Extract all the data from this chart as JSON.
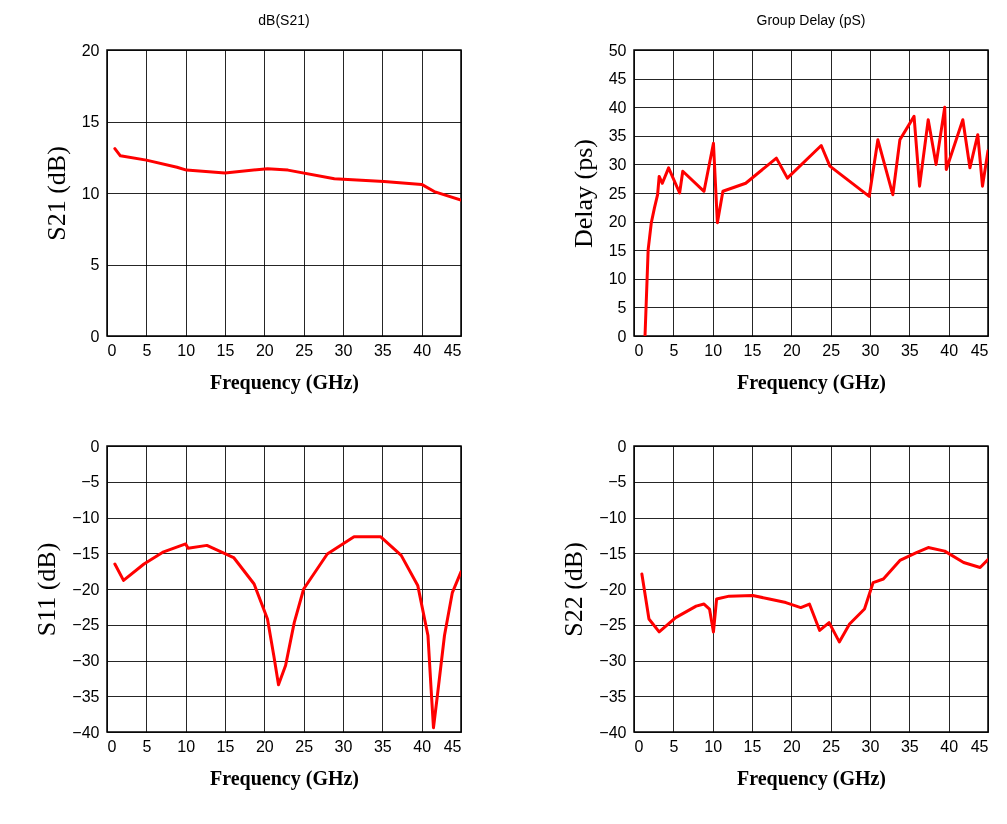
{
  "chart_data": [
    {
      "type": "line",
      "title": "dB(S21)",
      "xlabel": "Frequency (GHz)",
      "ylabel": "S21 (dB)",
      "grid": true,
      "xlim": [
        0,
        45
      ],
      "ylim": [
        0,
        20
      ],
      "xticks": [
        0,
        5,
        10,
        15,
        20,
        25,
        30,
        35,
        40,
        45
      ],
      "yticks": [
        0,
        5,
        10,
        15,
        20
      ],
      "x": [
        1,
        1.7,
        5,
        8.9,
        10.1,
        15,
        20.4,
        23,
        28.9,
        35.2,
        40,
        41.6,
        45
      ],
      "series": [
        {
          "color": "#ff0000",
          "values": [
            13.1,
            12.6,
            12.3,
            11.8,
            11.6,
            11.4,
            11.7,
            11.6,
            11.0,
            10.8,
            10.6,
            10.1,
            9.5
          ]
        }
      ]
    },
    {
      "type": "line",
      "title": "Group Delay (pS)",
      "xlabel": "Frequency (GHz)",
      "ylabel": "Delay (ps)",
      "grid": true,
      "xlim": [
        0,
        45
      ],
      "ylim": [
        0,
        50
      ],
      "xticks": [
        0,
        5,
        10,
        15,
        20,
        25,
        30,
        35,
        40,
        45
      ],
      "yticks": [
        0,
        5,
        10,
        15,
        20,
        25,
        30,
        35,
        40,
        45,
        50
      ],
      "x": [
        1.4,
        1.8,
        2.2,
        2.6,
        3.0,
        3.2,
        3.6,
        4.4,
        5.8,
        6.2,
        8.9,
        9.6,
        10.1,
        10.6,
        11.3,
        14.2,
        18.1,
        19.5,
        23.8,
        24.9,
        29.9,
        31,
        32.9,
        33.8,
        35.6,
        36.3,
        37.4,
        38.4,
        39.5,
        39.7,
        41.8,
        42.7,
        43.7,
        44.3,
        45
      ],
      "series": [
        {
          "color": "#ff0000",
          "values": [
            0,
            15.1,
            19.8,
            22.4,
            24.7,
            27.9,
            26.7,
            29.4,
            25,
            28.8,
            25.3,
            30.2,
            33.7,
            19.8,
            25.3,
            26.7,
            31.1,
            27.6,
            33.3,
            29.7,
            24.4,
            34.3,
            24.7,
            34.3,
            38.4,
            26.2,
            37.8,
            30,
            40,
            29.1,
            37.8,
            29.4,
            35.2,
            26.2,
            32.4
          ]
        }
      ]
    },
    {
      "type": "line",
      "xlabel": "Frequency (GHz)",
      "ylabel": "S11 (dB)",
      "grid": true,
      "xlim": [
        0,
        45
      ],
      "ylim": [
        -40,
        0
      ],
      "xticks": [
        0,
        5,
        10,
        15,
        20,
        25,
        30,
        35,
        40,
        45
      ],
      "yticks": [
        -40,
        -35,
        -30,
        -25,
        -20,
        -15,
        -10,
        -5,
        0
      ],
      "x": [
        1.0,
        2.1,
        4.7,
        7.2,
        10.0,
        10.3,
        12.7,
        16.1,
        18.7,
        20.4,
        21.2,
        21.8,
        22.7,
        23.8,
        25.0,
        28,
        31.4,
        34.8,
        37.4,
        39.5,
        40.8,
        41.2,
        41.5,
        42,
        42.9,
        43.9,
        45
      ],
      "series": [
        {
          "color": "#ff0000",
          "values": [
            -16.5,
            -18.8,
            -16.5,
            -14.8,
            -13.7,
            -14.3,
            -13.9,
            -15.6,
            -19.3,
            -24.2,
            -29.3,
            -33.4,
            -30.7,
            -24.7,
            -20,
            -15.1,
            -12.7,
            -12.7,
            -15.3,
            -19.5,
            -26.5,
            -34,
            -39.4,
            -34.9,
            -26.5,
            -20.5,
            -17.6
          ]
        }
      ]
    },
    {
      "type": "line",
      "xlabel": "Frequency (GHz)",
      "ylabel": "S22 (dB)",
      "grid": true,
      "xlim": [
        0,
        45
      ],
      "ylim": [
        -40,
        0
      ],
      "xticks": [
        0,
        5,
        10,
        15,
        20,
        25,
        30,
        35,
        40,
        45
      ],
      "yticks": [
        -40,
        -35,
        -30,
        -25,
        -20,
        -15,
        -10,
        -5,
        0
      ],
      "x": [
        1.0,
        1.9,
        3.2,
        5.3,
        7.9,
        8.9,
        9.6,
        10.1,
        10.5,
        12.1,
        15.1,
        17.2,
        19.3,
        21.2,
        22.3,
        23.6,
        24.8,
        26.1,
        27.4,
        29.3,
        30.4,
        31.7,
        33.8,
        35.9,
        37.4,
        39.5,
        41.9,
        44.0,
        45
      ],
      "series": [
        {
          "color": "#ff0000",
          "values": [
            -17.9,
            -24.2,
            -26,
            -24,
            -22.4,
            -22.1,
            -22.8,
            -26,
            -21.4,
            -21.0,
            -20.9,
            -21.4,
            -21.9,
            -22.6,
            -22.1,
            -25.8,
            -24.7,
            -27.4,
            -24.9,
            -22.8,
            -19.1,
            -18.6,
            -16,
            -14.9,
            -14.2,
            -14.7,
            -16.3,
            -17.0,
            -15.9
          ]
        }
      ]
    }
  ]
}
